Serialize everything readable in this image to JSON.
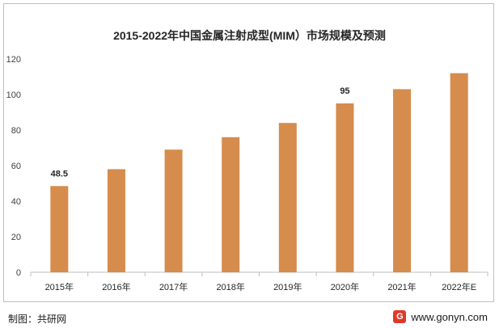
{
  "chart_data": {
    "type": "bar",
    "title": "2015-2022年中国金属注射成型(MIM）市场规模及预测",
    "categories": [
      "2015年",
      "2016年",
      "2017年",
      "2018年",
      "2019年",
      "2020年",
      "2021年",
      "2022年E"
    ],
    "values": [
      48.5,
      58,
      69,
      76,
      84,
      95,
      103,
      112
    ],
    "data_labels": {
      "0": "48.5",
      "5": "95"
    },
    "ylim": [
      0,
      120
    ],
    "yticks": [
      0,
      20,
      40,
      60,
      80,
      100,
      120
    ],
    "xlabel": "",
    "ylabel": "",
    "bar_color": "#d58c4c",
    "grid": false
  },
  "footer": {
    "source": "制图：共研网",
    "site": "www.gonyn.com",
    "logo_icon": "logo-icon",
    "logo_glyph": "G"
  }
}
